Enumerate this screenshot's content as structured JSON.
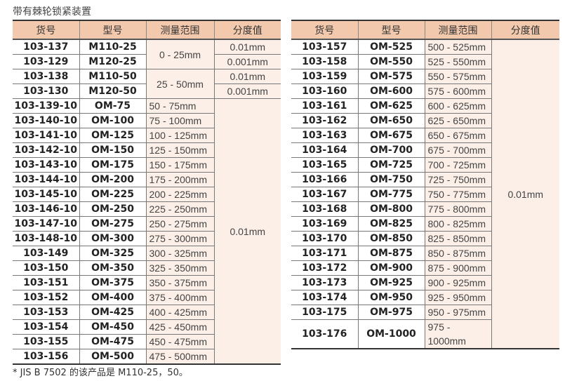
{
  "title": "带有棘轮锁紧装置",
  "headers": [
    "货号",
    "型号",
    "测量范围",
    "分度值"
  ],
  "left_rows": [
    [
      "103-137",
      "M110-25",
      "0 - 25mm",
      "0.01mm"
    ],
    [
      "103-129",
      "M120-25",
      "",
      "0.001mm"
    ],
    [
      "103-138",
      "M110-50",
      "25 - 50mm",
      "0.01mm"
    ],
    [
      "103-130",
      "M120-50",
      "",
      "0.001mm"
    ],
    [
      "103-139-10",
      "OM-75",
      "50 - 75mm",
      "0.01mm"
    ],
    [
      "103-140-10",
      "OM-100",
      "75 - 100mm",
      ""
    ],
    [
      "103-141-10",
      "OM-125",
      "100 - 125mm",
      ""
    ],
    [
      "103-142-10",
      "OM-150",
      "125 - 150mm",
      ""
    ],
    [
      "103-143-10",
      "OM-175",
      "150 - 175mm",
      ""
    ],
    [
      "103-144-10",
      "OM-200",
      "175 - 200mm",
      ""
    ],
    [
      "103-145-10",
      "OM-225",
      "200 - 225mm",
      ""
    ],
    [
      "103-146-10",
      "OM-250",
      "225 - 250mm",
      ""
    ],
    [
      "103-147-10",
      "OM-275",
      "250 - 275mm",
      ""
    ],
    [
      "103-148-10",
      "OM-300",
      "275 - 300mm",
      ""
    ],
    [
      "103-149",
      "OM-325",
      "300 - 325mm",
      ""
    ],
    [
      "103-150",
      "OM-350",
      "325 - 350mm",
      ""
    ],
    [
      "103-151",
      "OM-375",
      "350 - 375mm",
      ""
    ],
    [
      "103-152",
      "OM-400",
      "375 - 400mm",
      ""
    ],
    [
      "103-153",
      "OM-425",
      "400 - 425mm",
      ""
    ],
    [
      "103-154",
      "OM-450",
      "425 - 450mm",
      ""
    ],
    [
      "103-155",
      "OM-475",
      "450 - 475mm",
      ""
    ],
    [
      "103-156",
      "OM-500",
      "475 - 500mm",
      ""
    ]
  ],
  "right_rows": [
    [
      "103-157",
      "OM-525",
      "500 - 525mm",
      "0.01mm"
    ],
    [
      "103-158",
      "OM-550",
      "525 - 550mm",
      ""
    ],
    [
      "103-159",
      "OM-575",
      "550 - 575mm",
      ""
    ],
    [
      "103-160",
      "OM-600",
      "575 - 600mm",
      ""
    ],
    [
      "103-161",
      "OM-625",
      "600 - 625mm",
      ""
    ],
    [
      "103-162",
      "OM-650",
      "625 - 650mm",
      ""
    ],
    [
      "103-163",
      "OM-675",
      "650 - 675mm",
      ""
    ],
    [
      "103-164",
      "OM-700",
      "675 - 700mm",
      ""
    ],
    [
      "103-165",
      "OM-725",
      "700 - 725mm",
      ""
    ],
    [
      "103-166",
      "OM-750",
      "725 - 750mm",
      ""
    ],
    [
      "103-167",
      "OM-775",
      "750 - 775mm",
      ""
    ],
    [
      "103-168",
      "OM-800",
      "775 - 800mm",
      ""
    ],
    [
      "103-169",
      "OM-825",
      "800 - 825mm",
      ""
    ],
    [
      "103-170",
      "OM-850",
      "825 - 850mm",
      ""
    ],
    [
      "103-171",
      "OM-875",
      "850 - 875mm",
      ""
    ],
    [
      "103-172",
      "OM-900",
      "875 - 900mm",
      ""
    ],
    [
      "103-173",
      "OM-925",
      "900 - 925mm",
      ""
    ],
    [
      "103-174",
      "OM-950",
      "925 - 950mm",
      ""
    ],
    [
      "103-175",
      "OM-975",
      "950 - 975mm",
      ""
    ],
    [
      "103-176",
      "OM-1000",
      "975 - 1000mm",
      ""
    ]
  ],
  "note": "* JIS B 7502 的该产品是 M110-25，50。"
}
